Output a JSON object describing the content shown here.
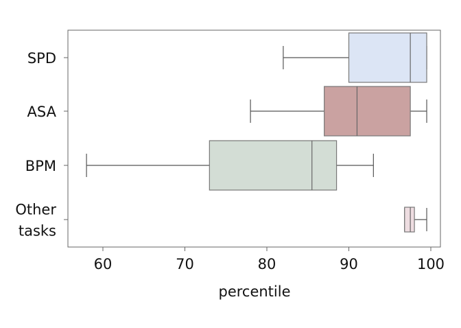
{
  "chart_data": {
    "type": "boxplot",
    "orientation": "horizontal",
    "xlabel": "percentile",
    "xlim": [
      56,
      101.5
    ],
    "xticks": [
      60,
      70,
      80,
      90,
      100
    ],
    "categories": [
      {
        "label_lines": [
          "SPD"
        ],
        "color": "#dce5f5",
        "whisker_low": 82,
        "q1": 90,
        "median": 97.5,
        "q3": 99.5,
        "whisker_high": 99.5
      },
      {
        "label_lines": [
          "ASA"
        ],
        "color": "#caa2a1",
        "whisker_low": 78,
        "q1": 87,
        "median": 91,
        "q3": 97.5,
        "whisker_high": 99.5
      },
      {
        "label_lines": [
          "BPM"
        ],
        "color": "#d3ddd5",
        "whisker_low": 58,
        "q1": 73,
        "median": 85.5,
        "q3": 88.5,
        "whisker_high": 93
      },
      {
        "label_lines": [
          "Other",
          "tasks"
        ],
        "color": "#eedde1",
        "whisker_low": 96.8,
        "q1": 96.8,
        "median": 97.5,
        "q3": 98,
        "whisker_high": 99.5
      }
    ],
    "grid": false,
    "legend": "none"
  }
}
